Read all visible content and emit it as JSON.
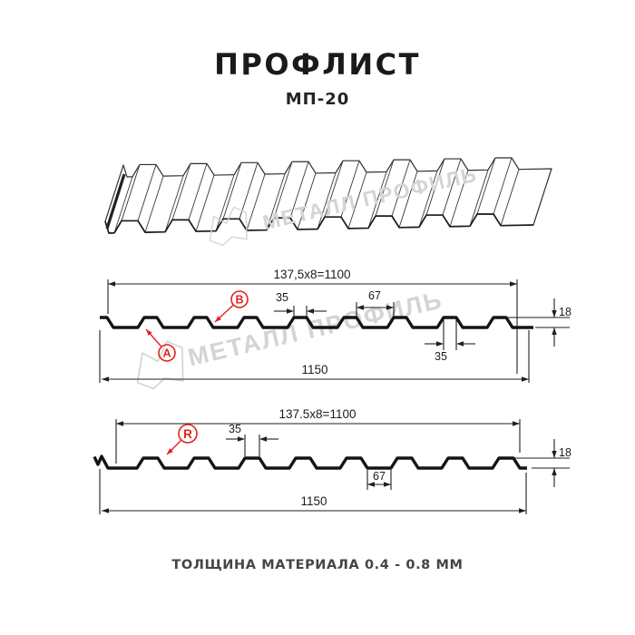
{
  "header": {
    "title": "ПРОФЛИСТ",
    "subtitle": "МП-20"
  },
  "footer": {
    "text": "ТОЛЩИНА МАТЕРИАЛА 0.4 - 0.8 ММ"
  },
  "watermark": {
    "text": "МЕТАЛЛ ПРОФИЛЬ"
  },
  "colors": {
    "red": "#e2231e",
    "line": "#1f1f1f",
    "watermark": "#d4d4d4"
  },
  "profile_top": {
    "marker_a": "A",
    "marker_b": "B",
    "dims": {
      "coverage": "137,5x8=1100",
      "crest_top": "35",
      "rib_gap": "67",
      "height": "18",
      "crest_bottom": "35",
      "overall": "1150"
    }
  },
  "profile_bottom": {
    "marker_r": "R",
    "dims": {
      "coverage": "137.5x8=1100",
      "crest": "35",
      "valley": "67",
      "height": "18",
      "overall": "1150"
    }
  }
}
